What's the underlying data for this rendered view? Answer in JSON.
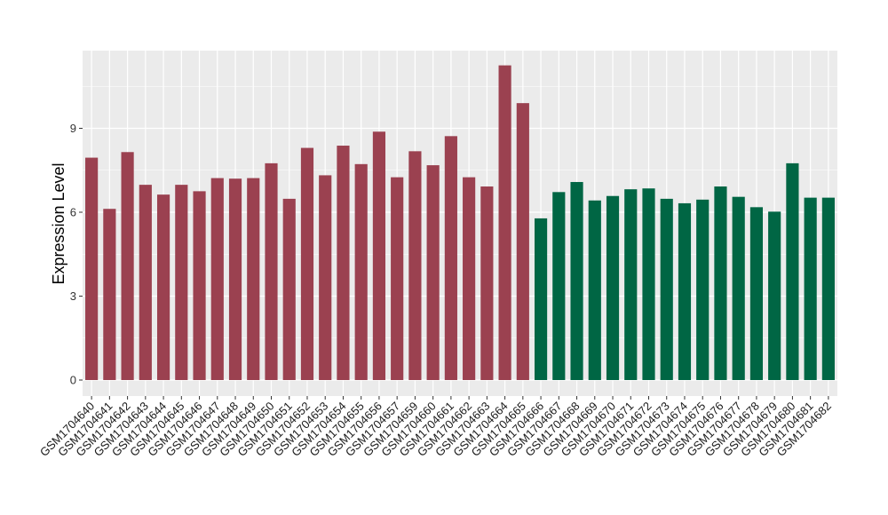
{
  "chart_data": {
    "type": "bar",
    "title": "",
    "xlabel": "",
    "ylabel": "Expression Level",
    "ylim": [
      0,
      11.9
    ],
    "yticks": [
      0,
      3,
      6,
      9
    ],
    "grid": true,
    "legend": "none",
    "colors": {
      "group1": "#9b4150",
      "group2": "#006644",
      "panel": "#ebebeb",
      "grid": "#ffffff"
    },
    "categories": [
      "GSM1704640",
      "GSM1704641",
      "GSM1704642",
      "GSM1704643",
      "GSM1704644",
      "GSM1704645",
      "GSM1704646",
      "GSM1704647",
      "GSM1704648",
      "GSM1704649",
      "GSM1704650",
      "GSM1704651",
      "GSM1704652",
      "GSM1704653",
      "GSM1704654",
      "GSM1704655",
      "GSM1704656",
      "GSM1704657",
      "GSM1704659",
      "GSM1704660",
      "GSM1704661",
      "GSM1704662",
      "GSM1704663",
      "GSM1704664",
      "GSM1704665",
      "GSM1704666",
      "GSM1704667",
      "GSM1704668",
      "GSM1704669",
      "GSM1704670",
      "GSM1704671",
      "GSM1704672",
      "GSM1704673",
      "GSM1704674",
      "GSM1704675",
      "GSM1704676",
      "GSM1704677",
      "GSM1704678",
      "GSM1704679",
      "GSM1704680",
      "GSM1704681",
      "GSM1704682"
    ],
    "values": [
      7.95,
      6.12,
      8.15,
      6.98,
      6.63,
      6.98,
      6.75,
      7.22,
      7.2,
      7.22,
      7.75,
      6.48,
      8.3,
      7.32,
      8.38,
      7.72,
      8.88,
      7.25,
      8.18,
      7.68,
      8.72,
      7.25,
      6.92,
      11.25,
      9.9,
      5.78,
      6.72,
      7.08,
      6.42,
      6.58,
      6.82,
      6.85,
      6.48,
      6.32,
      6.45,
      6.92,
      6.55,
      6.18,
      6.02,
      7.75,
      6.52,
      6.52
    ],
    "groups": [
      1,
      1,
      1,
      1,
      1,
      1,
      1,
      1,
      1,
      1,
      1,
      1,
      1,
      1,
      1,
      1,
      1,
      1,
      1,
      1,
      1,
      1,
      1,
      1,
      1,
      2,
      2,
      2,
      2,
      2,
      2,
      2,
      2,
      2,
      2,
      2,
      2,
      2,
      2,
      2,
      2,
      2
    ]
  }
}
